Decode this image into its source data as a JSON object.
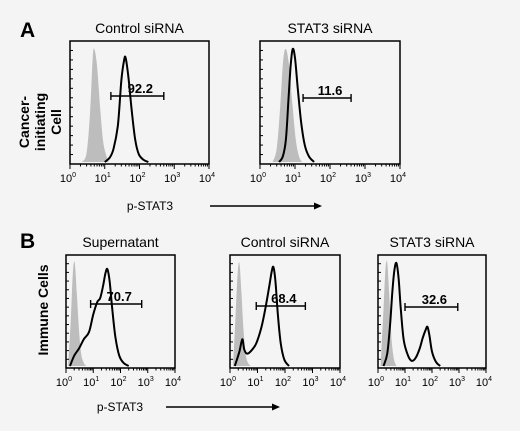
{
  "panels": [
    {
      "letter": "A",
      "row_label": [
        "Cancer-",
        "initiating",
        "Cell"
      ],
      "xlabel": "p-STAT3"
    },
    {
      "letter": "B",
      "row_label": [
        "Immune Cells"
      ],
      "xlabel": "p-STAT3"
    }
  ],
  "chart_data": [
    {
      "type": "histogram",
      "panel": "A",
      "title": "Control siRNA",
      "x_scale": "log",
      "xlim": [
        1,
        10000
      ],
      "xticks": [
        "10^0",
        "10^1",
        "10^2",
        "10^3",
        "10^4"
      ],
      "xlabel": "p-STAT3",
      "ylabel": "Cancer-initiating Cell",
      "gate": {
        "label": "92.2",
        "range": [
          15,
          500
        ]
      },
      "series": [
        {
          "style": "filled-gray",
          "peak": 5,
          "points": [
            [
              2.2,
              0
            ],
            [
              3,
              0.08
            ],
            [
              3.8,
              0.45
            ],
            [
              4.5,
              0.92
            ],
            [
              5,
              1.0
            ],
            [
              6,
              0.85
            ],
            [
              7.5,
              0.45
            ],
            [
              9,
              0.18
            ],
            [
              11,
              0.06
            ],
            [
              13,
              0
            ]
          ]
        },
        {
          "style": "black-line",
          "peak": 40,
          "points": [
            [
              10,
              0
            ],
            [
              14,
              0.04
            ],
            [
              18,
              0.12
            ],
            [
              24,
              0.33
            ],
            [
              30,
              0.72
            ],
            [
              36,
              0.9
            ],
            [
              40,
              0.92
            ],
            [
              48,
              0.75
            ],
            [
              60,
              0.45
            ],
            [
              75,
              0.2
            ],
            [
              95,
              0.07
            ],
            [
              130,
              0.02
            ],
            [
              180,
              0
            ]
          ]
        }
      ]
    },
    {
      "type": "histogram",
      "panel": "A",
      "title": "STAT3 siRNA",
      "x_scale": "log",
      "xlim": [
        1,
        10000
      ],
      "xticks": [
        "10^0",
        "10^1",
        "10^2",
        "10^3",
        "10^4"
      ],
      "xlabel": "p-STAT3",
      "gate": {
        "label": "11.6",
        "range": [
          17,
          400
        ]
      },
      "series": [
        {
          "style": "filled-gray",
          "peak": 6,
          "points": [
            [
              2.3,
              0
            ],
            [
              3,
              0.12
            ],
            [
              3.8,
              0.5
            ],
            [
              4.6,
              0.9
            ],
            [
              5.5,
              1.0
            ],
            [
              6.8,
              0.85
            ],
            [
              8.5,
              0.5
            ],
            [
              10.5,
              0.2
            ],
            [
              13,
              0.05
            ],
            [
              16,
              0
            ]
          ]
        },
        {
          "style": "black-line",
          "peak": 9,
          "points": [
            [
              3.5,
              0
            ],
            [
              4.5,
              0.05
            ],
            [
              5.5,
              0.2
            ],
            [
              6.5,
              0.55
            ],
            [
              7.5,
              0.85
            ],
            [
              8.6,
              1.0
            ],
            [
              10,
              0.92
            ],
            [
              12,
              0.65
            ],
            [
              15,
              0.35
            ],
            [
              19,
              0.15
            ],
            [
              25,
              0.05
            ],
            [
              35,
              0
            ]
          ]
        }
      ]
    },
    {
      "type": "histogram",
      "panel": "B",
      "title": "Supernatant",
      "x_scale": "log",
      "xlim": [
        1,
        10000
      ],
      "xticks": [
        "10^0",
        "10^1",
        "10^2",
        "10^3",
        "10^4"
      ],
      "xlabel": "p-STAT3",
      "ylabel": "Immune Cells",
      "gate": {
        "label": "70.7",
        "range": [
          8,
          600
        ]
      },
      "series": [
        {
          "style": "filled-gray",
          "peak": 2,
          "points": [
            [
              1.2,
              0
            ],
            [
              1.5,
              0.45
            ],
            [
              1.8,
              0.92
            ],
            [
              2.1,
              1.0
            ],
            [
              2.5,
              0.7
            ],
            [
              3,
              0.35
            ],
            [
              3.6,
              0.12
            ],
            [
              4.5,
              0.03
            ],
            [
              5.5,
              0
            ]
          ]
        },
        {
          "style": "black-line",
          "peak": 30,
          "points": [
            [
              1.4,
              0
            ],
            [
              2,
              0.1
            ],
            [
              3,
              0.17
            ],
            [
              4.5,
              0.26
            ],
            [
              7,
              0.33
            ],
            [
              10,
              0.5
            ],
            [
              14,
              0.62
            ],
            [
              18,
              0.66
            ],
            [
              23,
              0.78
            ],
            [
              28,
              0.9
            ],
            [
              33,
              0.94
            ],
            [
              40,
              0.82
            ],
            [
              50,
              0.55
            ],
            [
              65,
              0.28
            ],
            [
              90,
              0.1
            ],
            [
              130,
              0.03
            ],
            [
              200,
              0
            ]
          ]
        }
      ]
    },
    {
      "type": "histogram",
      "panel": "B",
      "title": "Control siRNA",
      "x_scale": "log",
      "xlim": [
        1,
        10000
      ],
      "xticks": [
        "10^0",
        "10^1",
        "10^2",
        "10^3",
        "10^4"
      ],
      "xlabel": "p-STAT3",
      "gate": {
        "label": "68.4",
        "range": [
          9,
          550
        ]
      },
      "series": [
        {
          "style": "filled-gray",
          "peak": 2,
          "points": [
            [
              1.3,
              0
            ],
            [
              1.6,
              0.5
            ],
            [
              1.9,
              0.9
            ],
            [
              2.2,
              1.0
            ],
            [
              2.6,
              0.72
            ],
            [
              3.1,
              0.35
            ],
            [
              3.8,
              0.1
            ],
            [
              4.8,
              0.02
            ],
            [
              6,
              0
            ]
          ]
        },
        {
          "style": "black-line",
          "peak": 38,
          "points": [
            [
              1.5,
              0
            ],
            [
              2.2,
              0.14
            ],
            [
              2.8,
              0.26
            ],
            [
              3.3,
              0.16
            ],
            [
              4.2,
              0.12
            ],
            [
              6,
              0.15
            ],
            [
              9,
              0.22
            ],
            [
              14,
              0.38
            ],
            [
              20,
              0.58
            ],
            [
              27,
              0.78
            ],
            [
              33,
              0.92
            ],
            [
              38,
              0.96
            ],
            [
              45,
              0.82
            ],
            [
              55,
              0.5
            ],
            [
              70,
              0.22
            ],
            [
              95,
              0.06
            ],
            [
              140,
              0
            ]
          ]
        }
      ]
    },
    {
      "type": "histogram",
      "panel": "B",
      "title": "STAT3 siRNA",
      "x_scale": "log",
      "xlim": [
        1,
        10000
      ],
      "xticks": [
        "10^0",
        "10^1",
        "10^2",
        "10^3",
        "10^4"
      ],
      "xlabel": "p-STAT3",
      "gate": {
        "label": "32.6",
        "range": [
          10,
          900
        ]
      },
      "series": [
        {
          "style": "filled-gray",
          "peak": 2,
          "points": [
            [
              1.25,
              0
            ],
            [
              1.6,
              0.55
            ],
            [
              1.9,
              0.95
            ],
            [
              2.2,
              1.0
            ],
            [
              2.6,
              0.7
            ],
            [
              3.1,
              0.3
            ],
            [
              3.8,
              0.08
            ],
            [
              4.8,
              0
            ]
          ]
        },
        {
          "style": "black-line",
          "peak": 5,
          "points": [
            [
              1.6,
              0
            ],
            [
              2.2,
              0.12
            ],
            [
              2.8,
              0.4
            ],
            [
              3.4,
              0.72
            ],
            [
              4,
              0.92
            ],
            [
              4.8,
              1.0
            ],
            [
              5.8,
              0.85
            ],
            [
              7,
              0.55
            ],
            [
              9,
              0.25
            ],
            [
              13,
              0.1
            ],
            [
              18,
              0.05
            ],
            [
              25,
              0.08
            ],
            [
              35,
              0.17
            ],
            [
              45,
              0.27
            ],
            [
              58,
              0.35
            ],
            [
              68,
              0.38
            ],
            [
              80,
              0.3
            ],
            [
              100,
              0.14
            ],
            [
              140,
              0.04
            ],
            [
              200,
              0
            ]
          ]
        }
      ]
    }
  ]
}
